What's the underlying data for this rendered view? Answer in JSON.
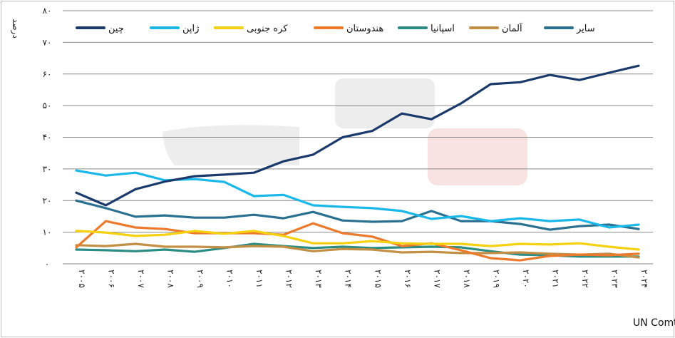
{
  "chart_data": {
    "type": "line",
    "title": "",
    "xlabel": "",
    "ylabel": "درصد",
    "ylim": [
      0,
      80
    ],
    "yticks": [
      0,
      10,
      20,
      30,
      40,
      50,
      60,
      70,
      80
    ],
    "ytick_labels": [
      "۰",
      "۱۰",
      "۲۰",
      "۳۰",
      "۴۰",
      "۵۰",
      "۶۰",
      "۷۰",
      "۸۰"
    ],
    "grid": true,
    "legend_position": "top",
    "categories": [
      "۲۰۰۵",
      "۲۰۰۶",
      "۲۰۰۷",
      "۲۰۰۸",
      "۲۰۰۹",
      "۲۰۱۰",
      "۲۰۱۱",
      "۲۰۱۲",
      "۲۰۱۳",
      "۲۰۱۴",
      "۲۰۱۵",
      "۲۰۱۶",
      "۲۰۱۷",
      "۲۰۱۸",
      "۲۰۱۹",
      "۲۰۲۰",
      "۲۰۲۱",
      "۲۰۲۲",
      "۲۰۲۳",
      "۲۰۲۴"
    ],
    "x": [
      2005,
      2006,
      2007,
      2008,
      2009,
      2010,
      2011,
      2012,
      2013,
      2014,
      2015,
      2016,
      2017,
      2018,
      2019,
      2020,
      2021,
      2022,
      2023,
      2024
    ],
    "series": [
      {
        "name": "چین",
        "color": "#1b3a6b",
        "values": [
          22.5,
          18.5,
          23.6,
          26,
          27.7,
          28.2,
          28.8,
          32.4,
          34.5,
          40,
          42,
          47.5,
          45.7,
          50.7,
          56.8,
          57.4,
          59.7,
          58.1,
          60.4,
          62.6
        ]
      },
      {
        "name": "ژاپن",
        "color": "#1ab8e8",
        "values": [
          29.5,
          27.9,
          28.8,
          26.4,
          26.8,
          25.9,
          21.4,
          21.8,
          18.5,
          18,
          17.6,
          16.7,
          14.2,
          15.1,
          13.5,
          14.4,
          13.5,
          14,
          11.5,
          12.4
        ]
      },
      {
        "name": "کره جنوبی",
        "color": "#f5d10f",
        "values": [
          10.4,
          9.9,
          8.8,
          9.2,
          10.4,
          9.5,
          10.4,
          8.8,
          6.5,
          6.5,
          7.2,
          6.5,
          6.3,
          6.3,
          5.6,
          6.3,
          6.1,
          6.5,
          5.4,
          4.5
        ]
      },
      {
        "name": "هندوستان",
        "color": "#ec7a2c",
        "values": [
          5.2,
          13.5,
          11.5,
          11,
          9.7,
          9.7,
          9.7,
          9.2,
          12.8,
          9.7,
          8.6,
          5.6,
          6.5,
          4.3,
          1.8,
          1.1,
          2.5,
          2.9,
          2.7,
          3.2
        ]
      },
      {
        "name": "اسپانیا",
        "color": "#2a8c82",
        "values": [
          4.5,
          4.3,
          4,
          4.5,
          3.8,
          5,
          6.3,
          5.6,
          5,
          5.4,
          5,
          5.2,
          5.4,
          5.2,
          4,
          2.9,
          2.7,
          2.3,
          2.3,
          2.3
        ]
      },
      {
        "name": "آلمان",
        "color": "#c38f45",
        "values": [
          5.9,
          5.6,
          6.3,
          5.4,
          5.4,
          5.2,
          5.6,
          5.4,
          4,
          4.7,
          4.5,
          3.6,
          3.8,
          3.4,
          3.4,
          3.6,
          3.2,
          2.9,
          3.2,
          2
        ]
      },
      {
        "name": "سایر",
        "color": "#2a7090",
        "values": [
          20,
          17.6,
          14.9,
          15.3,
          14.6,
          14.6,
          15.5,
          14.4,
          16.4,
          13.7,
          13.3,
          13.5,
          16.7,
          13.5,
          13.5,
          12.6,
          10.8,
          11.9,
          12.4,
          11
        ]
      }
    ]
  },
  "source_label": "منبع: UN Comtrade"
}
